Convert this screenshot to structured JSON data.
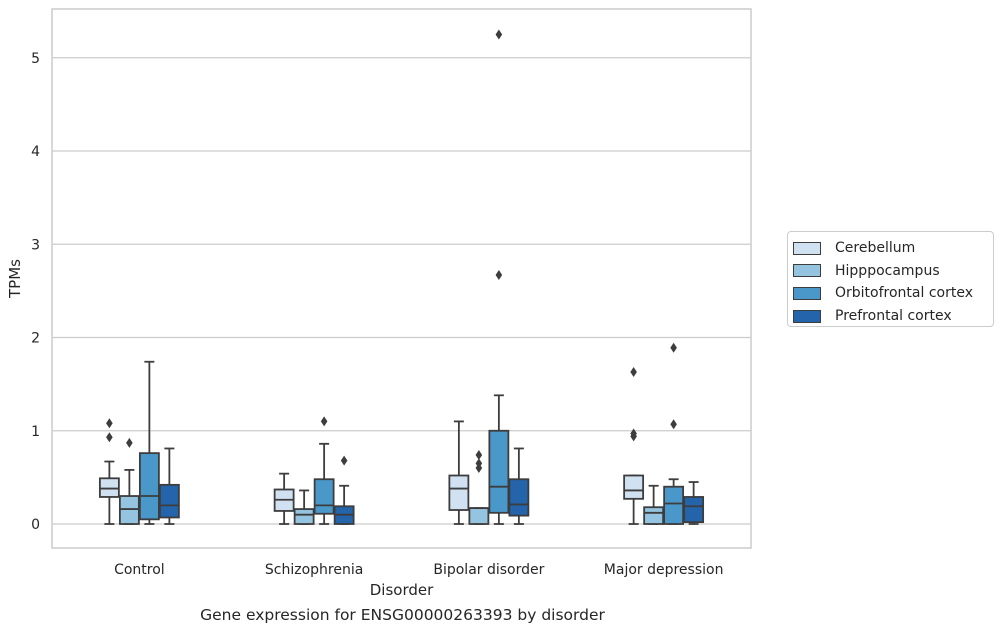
{
  "chart_data": {
    "type": "box",
    "caption": "Gene expression for ENSG00000263393 by disorder",
    "xlabel": "Disorder",
    "ylabel": "TPMs",
    "ylim": [
      -0.25,
      5.5
    ],
    "yticks": [
      0,
      1,
      2,
      3,
      4,
      5
    ],
    "grid": "horizontal",
    "legend_placement": "right",
    "categories": [
      "Control",
      "Schizophrenia",
      "Bipolar disorder",
      "Major depression"
    ],
    "series": [
      {
        "name": "Cerebellum",
        "color": "#d0e1f2",
        "boxes": [
          {
            "whislo": 0.0,
            "q1": 0.29,
            "med": 0.38,
            "q3": 0.49,
            "whishi": 0.67,
            "fliers": [
              0.93,
              1.08
            ]
          },
          {
            "whislo": 0.0,
            "q1": 0.14,
            "med": 0.26,
            "q3": 0.37,
            "whishi": 0.54,
            "fliers": []
          },
          {
            "whislo": 0.0,
            "q1": 0.15,
            "med": 0.38,
            "q3": 0.52,
            "whishi": 1.1,
            "fliers": []
          },
          {
            "whislo": 0.0,
            "q1": 0.27,
            "med": 0.36,
            "q3": 0.52,
            "whishi": 0.52,
            "fliers": [
              0.94,
              0.97,
              1.63
            ]
          }
        ]
      },
      {
        "name": "Hipppocampus",
        "color": "#94c4df",
        "boxes": [
          {
            "whislo": 0.0,
            "q1": 0.0,
            "med": 0.16,
            "q3": 0.3,
            "whishi": 0.58,
            "fliers": [
              0.87
            ]
          },
          {
            "whislo": 0.0,
            "q1": 0.0,
            "med": 0.1,
            "q3": 0.16,
            "whishi": 0.36,
            "fliers": []
          },
          {
            "whislo": 0.0,
            "q1": 0.0,
            "med": 0.17,
            "q3": 0.17,
            "whishi": 0.17,
            "fliers": [
              0.6,
              0.65,
              0.74
            ]
          },
          {
            "whislo": 0.0,
            "q1": 0.0,
            "med": 0.12,
            "q3": 0.18,
            "whishi": 0.41,
            "fliers": []
          }
        ]
      },
      {
        "name": "Orbitofrontal cortex",
        "color": "#4a98c9",
        "boxes": [
          {
            "whislo": 0.0,
            "q1": 0.05,
            "med": 0.3,
            "q3": 0.76,
            "whishi": 1.74,
            "fliers": []
          },
          {
            "whislo": 0.0,
            "q1": 0.11,
            "med": 0.2,
            "q3": 0.48,
            "whishi": 0.86,
            "fliers": [
              1.1
            ]
          },
          {
            "whislo": 0.0,
            "q1": 0.12,
            "med": 0.4,
            "q3": 1.0,
            "whishi": 1.38,
            "fliers": [
              2.67,
              5.25
            ]
          },
          {
            "whislo": 0.0,
            "q1": 0.0,
            "med": 0.22,
            "q3": 0.4,
            "whishi": 0.48,
            "fliers": [
              1.07,
              1.89
            ]
          }
        ]
      },
      {
        "name": "Prefrontal cortex",
        "color": "#2464ab",
        "boxes": [
          {
            "whislo": 0.0,
            "q1": 0.07,
            "med": 0.2,
            "q3": 0.42,
            "whishi": 0.81,
            "fliers": []
          },
          {
            "whislo": 0.0,
            "q1": 0.0,
            "med": 0.1,
            "q3": 0.19,
            "whishi": 0.41,
            "fliers": [
              0.68
            ]
          },
          {
            "whislo": 0.0,
            "q1": 0.09,
            "med": 0.21,
            "q3": 0.48,
            "whishi": 0.81,
            "fliers": []
          },
          {
            "whislo": 0.0,
            "q1": 0.02,
            "med": 0.19,
            "q3": 0.29,
            "whishi": 0.45,
            "fliers": []
          }
        ]
      }
    ]
  }
}
